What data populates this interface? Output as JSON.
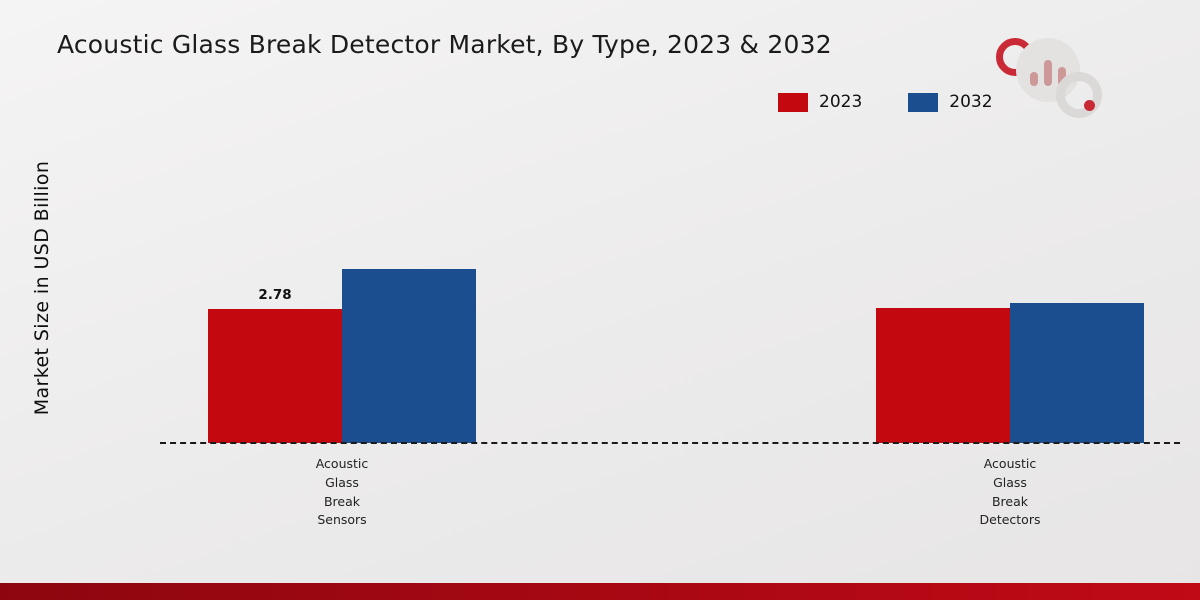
{
  "chart_data": {
    "type": "bar",
    "title": "Acoustic Glass Break Detector Market, By Type, 2023 & 2032",
    "ylabel": "Market Size in USD Billion",
    "xlabel": "",
    "categories": [
      "Acoustic Glass Break Sensors",
      "Acoustic Glass Break Detectors"
    ],
    "ylim": [
      0,
      6
    ],
    "grid": false,
    "legend_position": "top-right",
    "baseline_style": "dashed",
    "series": [
      {
        "name": "2023",
        "color": "#c4080f",
        "values": [
          2.78,
          2.8
        ],
        "labels": [
          "2.78",
          ""
        ]
      },
      {
        "name": "2032",
        "color": "#1a4e8f",
        "values": [
          3.6,
          2.9
        ],
        "labels": [
          "",
          ""
        ]
      }
    ]
  },
  "footer": {
    "accent_color": "#c00a16",
    "accent_dark": "#8d060f"
  }
}
